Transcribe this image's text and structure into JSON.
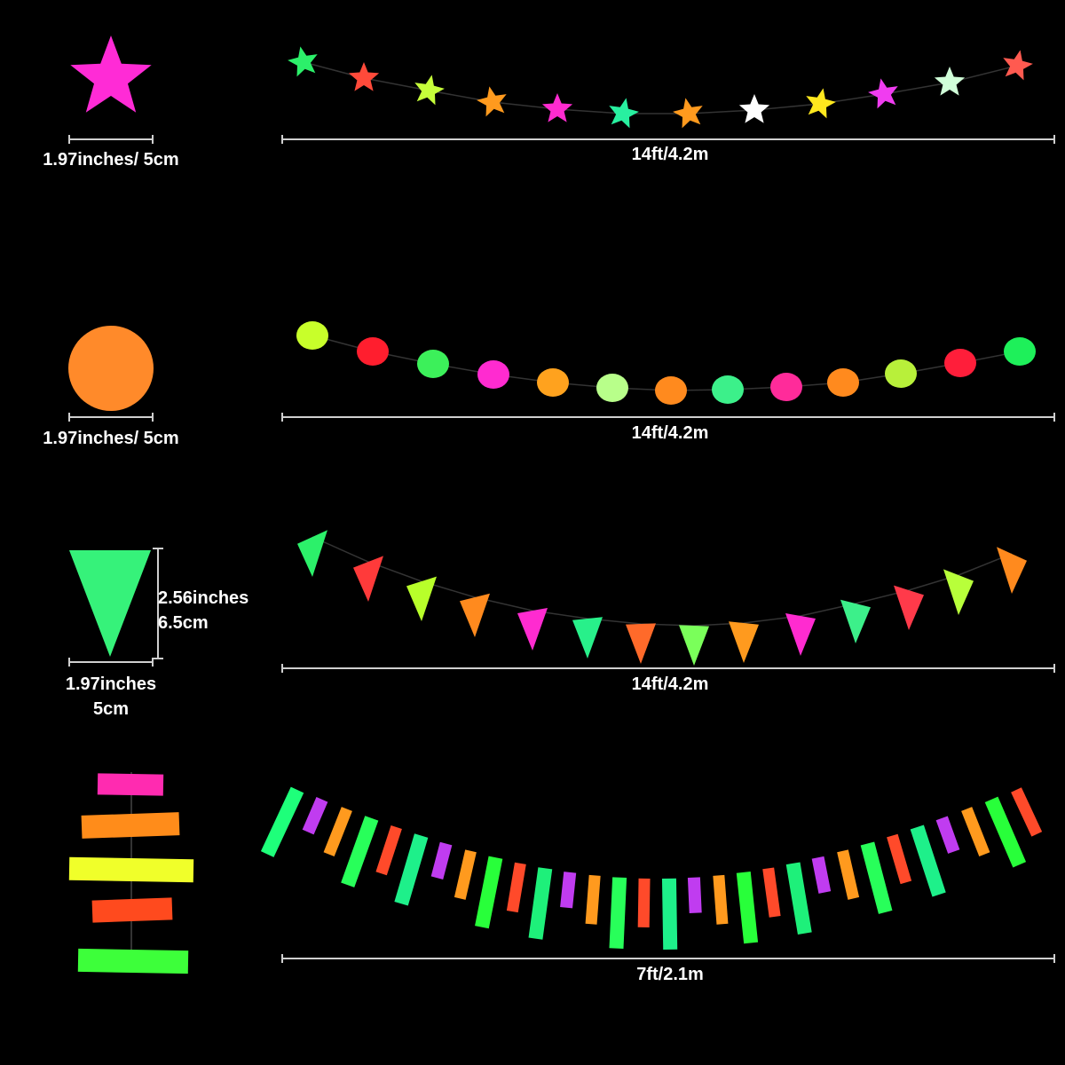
{
  "labels": {
    "star_size": "1.97inches/ 5cm",
    "circle_size": "1.97inches/ 5cm",
    "triangle_height_in": "2.56inches",
    "triangle_height_cm": "6.5cm",
    "triangle_width_in": "1.97inches",
    "triangle_width_cm": "5cm",
    "star_length": "14ft/4.2m",
    "circle_length": "14ft/4.2m",
    "triangle_length": "14ft/4.2m",
    "strip_length": "7ft/2.1m"
  },
  "colors": {
    "line": "#cfcfcf",
    "sample_star": "#ff2bd6",
    "sample_circle": "#ff8a2a",
    "sample_triangle": "#36f27a",
    "sample_strips": [
      "#ff2bb0",
      "#ff8c1a",
      "#f0ff2a",
      "#ff4a1e",
      "#3dff3a"
    ],
    "stars": [
      "#2cf06a",
      "#ff4a3a",
      "#c6ff3a",
      "#ff9a1e",
      "#ff2bd0",
      "#28f0a0",
      "#ff9a1e",
      "#ffffff",
      "#ffe81e",
      "#f03cf0",
      "#d0ffd8",
      "#ff5a50"
    ],
    "circles": [
      "#c8ff2a",
      "#ff1e2e",
      "#3cf05a",
      "#ff2bd0",
      "#ffa21e",
      "#b8ff8a",
      "#ff8a1e",
      "#3cf08a",
      "#ff2b9a",
      "#ff8a1e",
      "#b8f03a",
      "#ff1e3a",
      "#1ef05a"
    ],
    "triangles": [
      "#2cf06a",
      "#ff3a3a",
      "#b8ff2a",
      "#ff8a1e",
      "#ff2bd0",
      "#28f08a",
      "#ff6a2a",
      "#7aff5a",
      "#ff9a1e",
      "#ff2bd0",
      "#3cf08a",
      "#ff3a4a",
      "#b8ff3a",
      "#ff8a1e"
    ],
    "strips": [
      "#1eff7a",
      "#c03cf0",
      "#ff9a1e",
      "#28ff5a",
      "#ff4a2a",
      "#1ef08a",
      "#c03cf0",
      "#ff9a1e",
      "#28ff3a",
      "#ff4a2a",
      "#1ef07a",
      "#c03cf0",
      "#ff9a1e",
      "#28ff5a",
      "#ff4a2a",
      "#1ef08a",
      "#c03cf0",
      "#ff9a1e",
      "#28ff3a",
      "#ff4a2a",
      "#1ef07a",
      "#c03cf0",
      "#ff9a1e",
      "#28ff5a",
      "#ff4a2a",
      "#1ef08a",
      "#c03cf0",
      "#ff9a1e",
      "#28ff3a",
      "#ff4a2a"
    ]
  }
}
